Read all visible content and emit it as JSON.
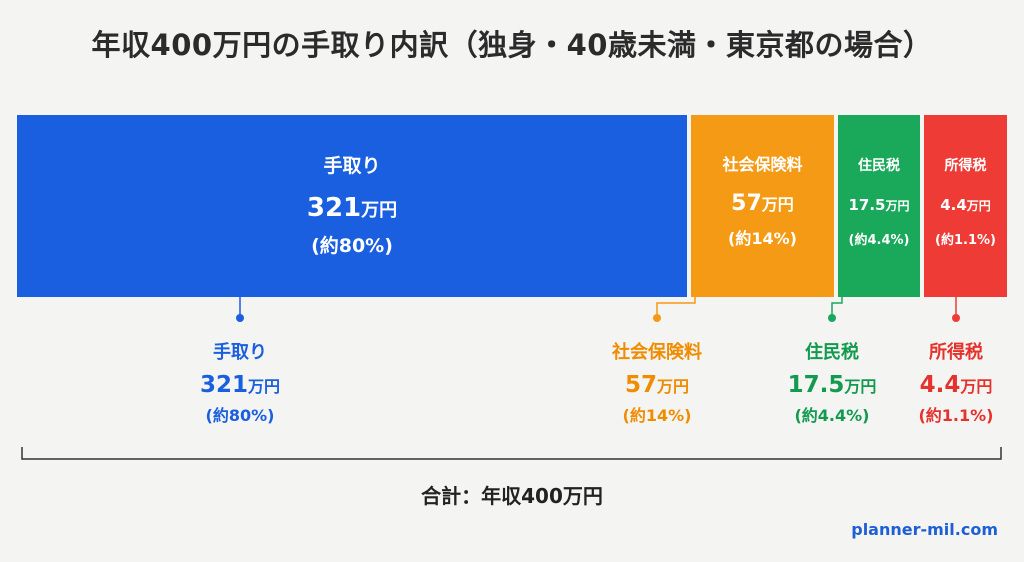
{
  "title": "年収400万円の手取り内訳（独身・40歳未満・東京都の場合）",
  "total_label": "合計：年収400万円",
  "source": "planner-mil.com",
  "chart_data": {
    "type": "bar",
    "orientation": "horizontal-stacked",
    "unit": "万円",
    "total": 400,
    "segments": [
      {
        "name": "手取り",
        "value": 321,
        "value_label": "321",
        "unit": "万円",
        "percent_label": "(約80%)",
        "color": "#1a5fe0",
        "text_color": "#1a5fe0"
      },
      {
        "name": "社会保険料",
        "value": 57,
        "value_label": "57",
        "unit": "万円",
        "percent_label": "(約14%)",
        "color": "#f59a14",
        "text_color": "#f08c00"
      },
      {
        "name": "住民税",
        "value": 17.5,
        "value_label": "17.5",
        "unit": "万円",
        "percent_label": "(約4.4%)",
        "color": "#1aa85a",
        "text_color": "#129a4e"
      },
      {
        "name": "所得税",
        "value": 4.4,
        "value_label": "4.4",
        "unit": "万円",
        "percent_label": "(約1.1%)",
        "color": "#ef3b36",
        "text_color": "#e6322d"
      }
    ]
  }
}
